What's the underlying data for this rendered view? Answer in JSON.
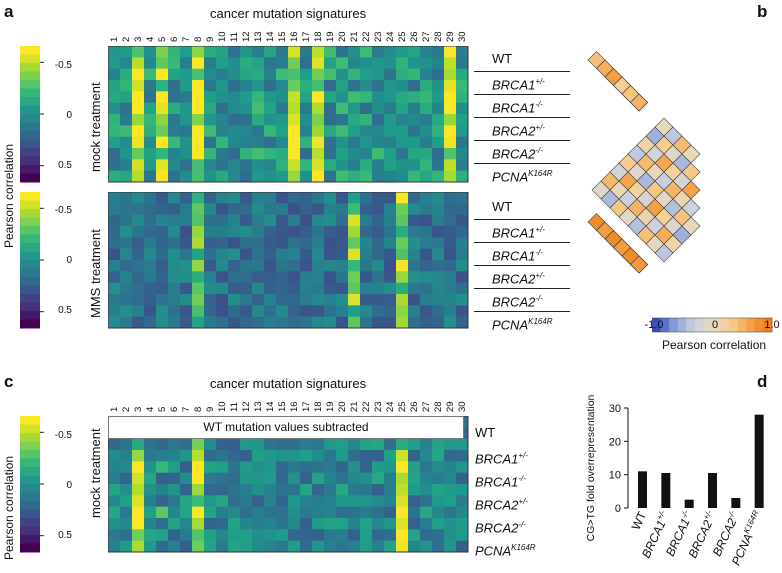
{
  "panel_a": {
    "letter": "a",
    "title": "cancer mutation signatures",
    "colorbar_label": "Pearson correlation",
    "colorbar_ticks": [
      "-0.5",
      "0",
      "0.5"
    ],
    "group1_label": "mock  treatment",
    "group2_label": "MMS  treatment",
    "signature_numbers": [
      "1",
      "2",
      "3",
      "4",
      "5",
      "6",
      "7",
      "8",
      "9",
      "10",
      "11",
      "12",
      "13",
      "14",
      "15",
      "16",
      "17",
      "18",
      "19",
      "20",
      "21",
      "22",
      "23",
      "24",
      "25",
      "26",
      "27",
      "28",
      "29",
      "30"
    ],
    "rows": [
      {
        "main": "WT",
        "sup": ""
      },
      {
        "main": "BRCA1",
        "sup": "+/-"
      },
      {
        "main": "BRCA1",
        "sup": "-/-"
      },
      {
        "main": "BRCA2",
        "sup": "+/-"
      },
      {
        "main": "BRCA2",
        "sup": "-/-"
      },
      {
        "main": "PCNA",
        "sup": "K164R"
      }
    ],
    "colors": [
      "#440154",
      "#482878",
      "#3e4989",
      "#31688e",
      "#26828e",
      "#1f9e89",
      "#35b779",
      "#6ece58",
      "#b5de2b",
      "#fde725"
    ]
  },
  "panel_b": {
    "letter": "b",
    "colorbar_ticks": [
      "-1.0",
      "0",
      "1.0"
    ],
    "colorbar_label": "Pearson correlation",
    "colors": [
      "#3b4cc0",
      "#8a9fd6",
      "#c9d0e0",
      "#e4d9c4",
      "#f6cf8e",
      "#f4a44a",
      "#ef7d1a"
    ]
  },
  "panel_c": {
    "letter": "c",
    "title": "cancer mutation signatures",
    "colorbar_label": "Pearson correlation",
    "colorbar_ticks": [
      "-0.5",
      "0",
      "0.5"
    ],
    "group_label": "mock  treatment",
    "banner": "WT mutation values subtracted"
  },
  "panel_d": {
    "letter": "d",
    "ylabel": "CG>TG fold overrepresentation",
    "chart_data": {
      "type": "bar",
      "categories": [
        "WT",
        "BRCA1+/-",
        "BRCA1-/-",
        "BRCA2+/-",
        "BRCA2-/-",
        "PCNAK164R"
      ],
      "values": [
        11,
        10.5,
        2.5,
        10.5,
        3,
        28
      ],
      "title": "",
      "xlabel": "",
      "ylabel": "CG>TG fold overrepresentation",
      "ylim": [
        0,
        30
      ],
      "yticks": [
        "0",
        "10",
        "20",
        "30"
      ]
    }
  }
}
